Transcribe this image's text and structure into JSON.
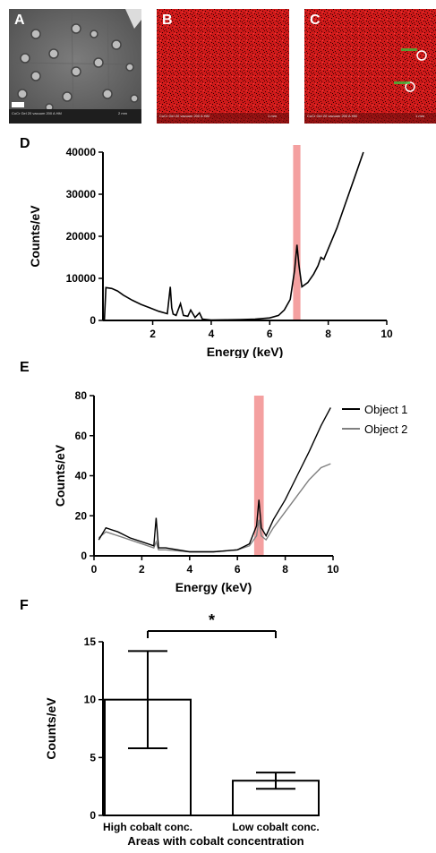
{
  "panels": {
    "A": {
      "label": "A",
      "footer": "CoCr Gel 20 vacuum 200 A HM",
      "scale": "2 mm"
    },
    "B": {
      "label": "B",
      "footer": "CoCr Gel 20 vacuum 200 A HM",
      "scale": "1 mm"
    },
    "C": {
      "label": "C",
      "footer": "CoCr Gel 20 vacuum 200 A HM",
      "scale": "1 mm"
    },
    "D": {
      "label": "D"
    },
    "E": {
      "label": "E"
    },
    "F": {
      "label": "F"
    }
  },
  "colors": {
    "highlight": "#f4a0a0",
    "series1": "#000000",
    "series2": "#808080",
    "eds_red": "#d41a1a"
  },
  "chart_data": [
    {
      "id": "D",
      "type": "line",
      "xlabel": "Energy (keV)",
      "ylabel": "Counts/eV",
      "xlim": [
        0.3,
        10
      ],
      "ylim": [
        0,
        40000
      ],
      "xticks": [
        "2",
        "4",
        "6",
        "8",
        "10"
      ],
      "yticks": [
        "0",
        "10000",
        "20000",
        "30000",
        "40000"
      ],
      "highlight_band": [
        6.8,
        7.05
      ],
      "x": [
        0.35,
        0.4,
        0.6,
        0.8,
        1.0,
        1.3,
        1.6,
        1.9,
        2.2,
        2.5,
        2.6,
        2.65,
        2.7,
        2.8,
        2.95,
        3.05,
        3.2,
        3.3,
        3.45,
        3.6,
        3.7,
        3.85,
        4.0,
        4.5,
        5.0,
        5.5,
        6.0,
        6.3,
        6.5,
        6.7,
        6.85,
        6.93,
        7.0,
        7.1,
        7.3,
        7.5,
        7.65,
        7.75,
        7.85,
        8.0,
        8.3,
        8.6,
        8.9,
        9.2
      ],
      "y": [
        0,
        7800,
        7600,
        7000,
        6000,
        4800,
        3800,
        3000,
        2200,
        1600,
        8000,
        3000,
        1500,
        1200,
        4000,
        1200,
        1000,
        2500,
        700,
        1800,
        300,
        200,
        100,
        150,
        200,
        300,
        600,
        1200,
        2500,
        5000,
        12000,
        18000,
        13000,
        8000,
        9000,
        11000,
        13000,
        15000,
        14500,
        17000,
        22000,
        28000,
        34000,
        40000
      ]
    },
    {
      "id": "E",
      "type": "line",
      "xlabel": "Energy (keV)",
      "ylabel": "Counts/eV",
      "xlim": [
        0,
        10
      ],
      "ylim": [
        0,
        80
      ],
      "xticks": [
        "0",
        "2",
        "4",
        "6",
        "8",
        "10"
      ],
      "yticks": [
        "0",
        "20",
        "40",
        "60",
        "80"
      ],
      "highlight_band": [
        6.7,
        7.1
      ],
      "series": [
        {
          "name": "Object 1",
          "x": [
            0.2,
            0.5,
            1.0,
            1.5,
            2.0,
            2.5,
            2.6,
            2.7,
            3.0,
            4.0,
            5.0,
            6.0,
            6.5,
            6.8,
            6.9,
            7.0,
            7.2,
            7.5,
            8.0,
            8.5,
            9.0,
            9.5,
            9.9
          ],
          "y": [
            8,
            14,
            12,
            9,
            7,
            5,
            19,
            4,
            4,
            2,
            2,
            3,
            6,
            15,
            28,
            14,
            10,
            18,
            28,
            40,
            52,
            65,
            74
          ]
        },
        {
          "name": "Object 2",
          "x": [
            0.2,
            0.5,
            1.0,
            1.5,
            2.0,
            2.5,
            2.6,
            2.7,
            3.0,
            4.0,
            5.0,
            6.0,
            6.5,
            6.8,
            6.9,
            7.0,
            7.2,
            7.5,
            8.0,
            8.5,
            9.0,
            9.5,
            9.9
          ],
          "y": [
            9,
            12,
            10,
            8,
            6,
            4,
            7,
            3,
            3,
            2,
            2,
            3,
            5,
            10,
            18,
            10,
            8,
            14,
            22,
            30,
            38,
            44,
            46
          ]
        }
      ]
    },
    {
      "id": "F",
      "type": "bar",
      "xlabel": "Areas with cobalt concentration",
      "ylabel": "Counts/eV",
      "ylim": [
        0,
        15
      ],
      "yticks": [
        "0",
        "5",
        "10",
        "15"
      ],
      "categories": [
        "High cobalt conc.",
        "Low cobalt conc."
      ],
      "values": [
        10.0,
        3.0
      ],
      "errors": [
        4.2,
        0.7
      ],
      "significance": "*"
    }
  ]
}
